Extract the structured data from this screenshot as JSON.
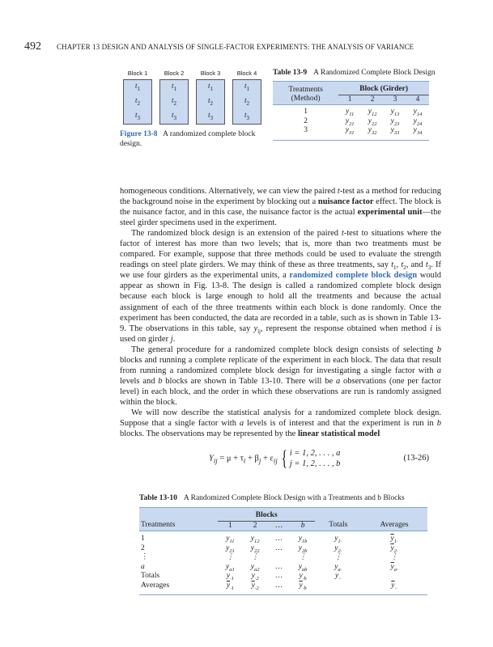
{
  "header": {
    "page_number": "492",
    "running_head": "CHAPTER 13 DESIGN AND ANALYSIS OF SINGLE-FACTOR EXPERIMENTS: THE ANALYSIS OF VARIANCE"
  },
  "figure": {
    "blocks": [
      {
        "label": "Block 1",
        "items": [
          [
            "t",
            "1"
          ],
          [
            "t",
            "2"
          ],
          [
            "t",
            "3"
          ]
        ]
      },
      {
        "label": "Block 2",
        "items": [
          [
            "t",
            "1"
          ],
          [
            "t",
            "2"
          ],
          [
            "t",
            "3"
          ]
        ]
      },
      {
        "label": "Block 3",
        "items": [
          [
            "t",
            "1"
          ],
          [
            "t",
            "2"
          ],
          [
            "t",
            "3"
          ]
        ]
      },
      {
        "label": "Block 4",
        "items": [
          [
            "t",
            "1"
          ],
          [
            "t",
            "2"
          ],
          [
            "t",
            "3"
          ]
        ]
      }
    ],
    "caption_label": "Figure 13-8",
    "caption_text": "A randomized complete block design."
  },
  "table9": {
    "label": "Table 13-9",
    "title": "A Randomized Complete Block Design",
    "row_header_1": "Treatments",
    "row_header_2": "(Method)",
    "group_header": "Block (Girder)",
    "columns": [
      "1",
      "2",
      "3",
      "4"
    ],
    "rows": [
      {
        "label": "1",
        "cells": [
          [
            "y",
            "11"
          ],
          [
            "y",
            "12"
          ],
          [
            "y",
            "13"
          ],
          [
            "y",
            "14"
          ]
        ]
      },
      {
        "label": "2",
        "cells": [
          [
            "y",
            "21"
          ],
          [
            "y",
            "22"
          ],
          [
            "y",
            "23"
          ],
          [
            "y",
            "24"
          ]
        ]
      },
      {
        "label": "3",
        "cells": [
          [
            "y",
            "31"
          ],
          [
            "y",
            "32"
          ],
          [
            "y",
            "33"
          ],
          [
            "y",
            "34"
          ]
        ]
      }
    ]
  },
  "body": [
    [
      [
        "homogeneous conditions. Alternatively, we can view the paired ",
        ""
      ],
      [
        "t",
        "i"
      ],
      [
        "-test as a method for reducing the background noise in the experiment by blocking out a ",
        ""
      ],
      [
        "nuisance factor",
        "b"
      ],
      [
        " effect. The block is the nuisance factor, and in this case, the nuisance factor is the actual ",
        ""
      ],
      [
        "experimental unit",
        "b"
      ],
      [
        "—the steel girder specimens used in the experiment.",
        ""
      ]
    ],
    [
      [
        "The randomized block design is an extension of the paired ",
        ""
      ],
      [
        "t",
        "i"
      ],
      [
        "-test to situations where the factor of interest has more than two levels; that is, more than two treatments must be compared. For example, suppose that three methods could be used to evaluate the strength readings on steel plate girders. We may think of these as three treatments, say ",
        ""
      ],
      [
        "t",
        "i"
      ],
      [
        "1",
        "sub"
      ],
      [
        ", ",
        ""
      ],
      [
        "t",
        "i"
      ],
      [
        "2",
        "sub"
      ],
      [
        ", and ",
        ""
      ],
      [
        "t",
        "i"
      ],
      [
        "3",
        "sub"
      ],
      [
        ". If we use four girders as the experimental units, a ",
        ""
      ],
      [
        "randomized complete block design",
        "blue"
      ],
      [
        " would appear as shown in Fig. 13-8. The design is called a randomized complete block design because each block is large enough to hold all the treatments and because the actual assignment of each of the three treatments within each block is done randomly. Once the experiment has been conducted, the data are recorded in a table, such as is shown in Table 13-9. The observations in this table, say ",
        ""
      ],
      [
        "y",
        "i"
      ],
      [
        "ij",
        "sub"
      ],
      [
        ", represent the response obtained when method ",
        ""
      ],
      [
        "i",
        "i"
      ],
      [
        " is used on girder ",
        ""
      ],
      [
        "j",
        "i"
      ],
      [
        ".",
        ""
      ]
    ],
    [
      [
        "The general procedure for a randomized complete block design consists of selecting ",
        ""
      ],
      [
        "b",
        "i"
      ],
      [
        " blocks and running a complete replicate of the experiment in each block. The data that result from running a randomized complete block design for investigating a single factor with ",
        ""
      ],
      [
        "a",
        "i"
      ],
      [
        " levels and ",
        ""
      ],
      [
        "b",
        "i"
      ],
      [
        " blocks are shown in Table 13-10. There will be ",
        ""
      ],
      [
        "a",
        "i"
      ],
      [
        " observations (one per factor level) in each block, and the order in which these observations are run is randomly assigned within the block.",
        ""
      ]
    ],
    [
      [
        "We will now describe the statistical analysis for a randomized complete block design. Suppose that a single factor with ",
        ""
      ],
      [
        "a",
        "i"
      ],
      [
        " levels is of interest and that the experiment is run in ",
        ""
      ],
      [
        "b",
        "i"
      ],
      [
        " blocks. The observations may be represented by the ",
        ""
      ],
      [
        "linear statistical model",
        "b"
      ]
    ]
  ],
  "equation": {
    "lhs": "Y",
    "lhs_sub": "ij",
    "rhs": " = μ + τ",
    "tau_sub": "i",
    "beta": " + β",
    "beta_sub": "j",
    "eps": " + ε",
    "eps_sub": "ij",
    "case1": "i = 1, 2, . . . , a",
    "case2": "j = 1, 2, . . . , b",
    "number": "(13-26)"
  },
  "table10": {
    "label": "Table 13-10",
    "title": "A Randomized Complete Block Design with a Treatments and b Blocks",
    "group_header": "Blocks",
    "columns": [
      "Treatments",
      "1",
      "2",
      "…",
      "b",
      "Totals",
      "Averages"
    ],
    "rows": [
      {
        "label": "1",
        "cells": [
          [
            "y",
            "11",
            0
          ],
          [
            "y",
            "12",
            0
          ],
          [
            "…",
            "",
            0
          ],
          [
            "y",
            "1b",
            0
          ],
          [
            "y",
            "1·",
            0
          ],
          [
            "y",
            "1·",
            1
          ]
        ]
      },
      {
        "label": "2",
        "cells": [
          [
            "y",
            "21",
            0
          ],
          [
            "y",
            "22",
            0
          ],
          [
            "…",
            "",
            0
          ],
          [
            "y",
            "2b",
            0
          ],
          [
            "y",
            "2·",
            0
          ],
          [
            "y",
            "2·",
            1
          ]
        ]
      },
      {
        "label": "⋮",
        "cells": [
          [
            "⋮",
            "",
            0
          ],
          [
            "⋮",
            "",
            0
          ],
          [
            "",
            "",
            0
          ],
          [
            "⋮",
            "",
            0
          ],
          [
            "⋮",
            "",
            0
          ],
          [
            "⋮",
            "",
            0
          ]
        ]
      },
      {
        "label": "a",
        "cells": [
          [
            "y",
            "a1",
            0
          ],
          [
            "y",
            "a2",
            0
          ],
          [
            "…",
            "",
            0
          ],
          [
            "y",
            "ab",
            0
          ],
          [
            "y",
            "a·",
            0
          ],
          [
            "y",
            "a·",
            1
          ]
        ]
      },
      {
        "label": "Totals",
        "cells": [
          [
            "y",
            "·1",
            0
          ],
          [
            "y",
            "·2",
            0
          ],
          [
            "…",
            "",
            0
          ],
          [
            "y",
            "·b",
            0
          ],
          [
            "y",
            "··",
            0
          ],
          [
            "",
            "",
            0
          ]
        ]
      },
      {
        "label": "Averages",
        "cells": [
          [
            "y",
            "·1",
            1
          ],
          [
            "y",
            "·2",
            1
          ],
          [
            "…",
            "",
            0
          ],
          [
            "y",
            "·b",
            1
          ],
          [
            "",
            "",
            0
          ],
          [
            "y",
            "··",
            1
          ]
        ]
      }
    ]
  },
  "colors": {
    "accent_blue": "#2f6db5",
    "table_header": "#c9d9f0",
    "table_rule": "#7fa6d6"
  }
}
